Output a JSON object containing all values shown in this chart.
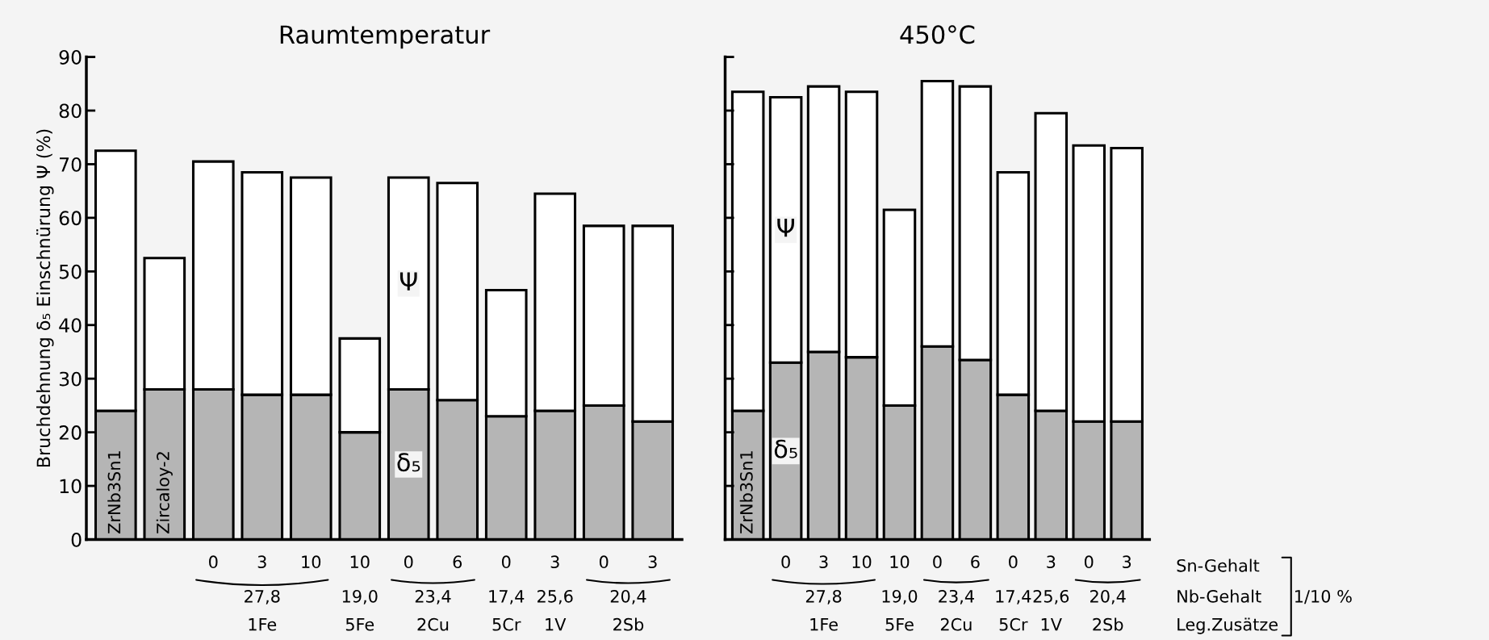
{
  "chart_data": [
    {
      "type": "bar",
      "title": "Raumtemperatur",
      "ylabel": "Bruchdehnung δ₅ Einschnürung Ψ (%)",
      "stacked": true,
      "categories": [
        null,
        null,
        "0",
        "3",
        "10",
        "10",
        "0",
        "6",
        "0",
        "3",
        "0",
        "3"
      ],
      "series": [
        {
          "name": "δ₅",
          "color": "#b5b5b5",
          "values": [
            24,
            28,
            28,
            27,
            27,
            20,
            28,
            26,
            23,
            24,
            25,
            22
          ]
        },
        {
          "name": "Ψ",
          "color": "#ffffff",
          "values": [
            48.5,
            24.5,
            42.5,
            41.5,
            40.5,
            17.5,
            39.5,
            40.5,
            23.5,
            40.5,
            33.5,
            36.5
          ]
        }
      ],
      "ylim": [
        0,
        90
      ],
      "yticks": [
        0,
        10,
        20,
        30,
        40,
        50,
        60,
        70,
        80,
        90
      ],
      "annotations": [
        "ZrNb3Sn1",
        "Zircaloy-2",
        "27,8",
        "19,0",
        "23,4",
        "17,4",
        "25,6",
        "20,4",
        "1Fe",
        "5Fe",
        "2Cu",
        "5Cr",
        "1V",
        "2Sb"
      ]
    },
    {
      "type": "bar",
      "title": "450°C",
      "stacked": true,
      "tick_labels": "x",
      "categories": [
        null,
        "0",
        "3",
        "10",
        "10",
        "0",
        "6",
        "0",
        "3",
        "0",
        "3"
      ],
      "series": [
        {
          "name": "δ₅",
          "color": "#b5b5b5",
          "values": [
            24,
            33,
            35,
            34,
            25,
            36,
            33.5,
            27,
            24,
            22,
            22
          ]
        },
        {
          "name": "Ψ",
          "color": "#ffffff",
          "values": [
            59.5,
            49.5,
            49.5,
            49.5,
            36.5,
            49.5,
            51,
            41.5,
            55.5,
            51.5,
            51
          ]
        }
      ],
      "ylim": [
        0,
        90
      ],
      "yticks": [
        0,
        10,
        20,
        30,
        40,
        50,
        60,
        70,
        80,
        90
      ],
      "annotations": [
        "ZrNb3Sn1",
        "27,8",
        "19,0",
        "23,4",
        "17,4",
        "25,6",
        "20,4",
        "1Fe",
        "5Fe",
        "2Cu",
        "5Cr",
        "1V",
        "2Sb",
        "Sn-Gehalt",
        "Nb-Gehalt",
        "Leg.Zusätze",
        "1/10 %"
      ]
    }
  ]
}
